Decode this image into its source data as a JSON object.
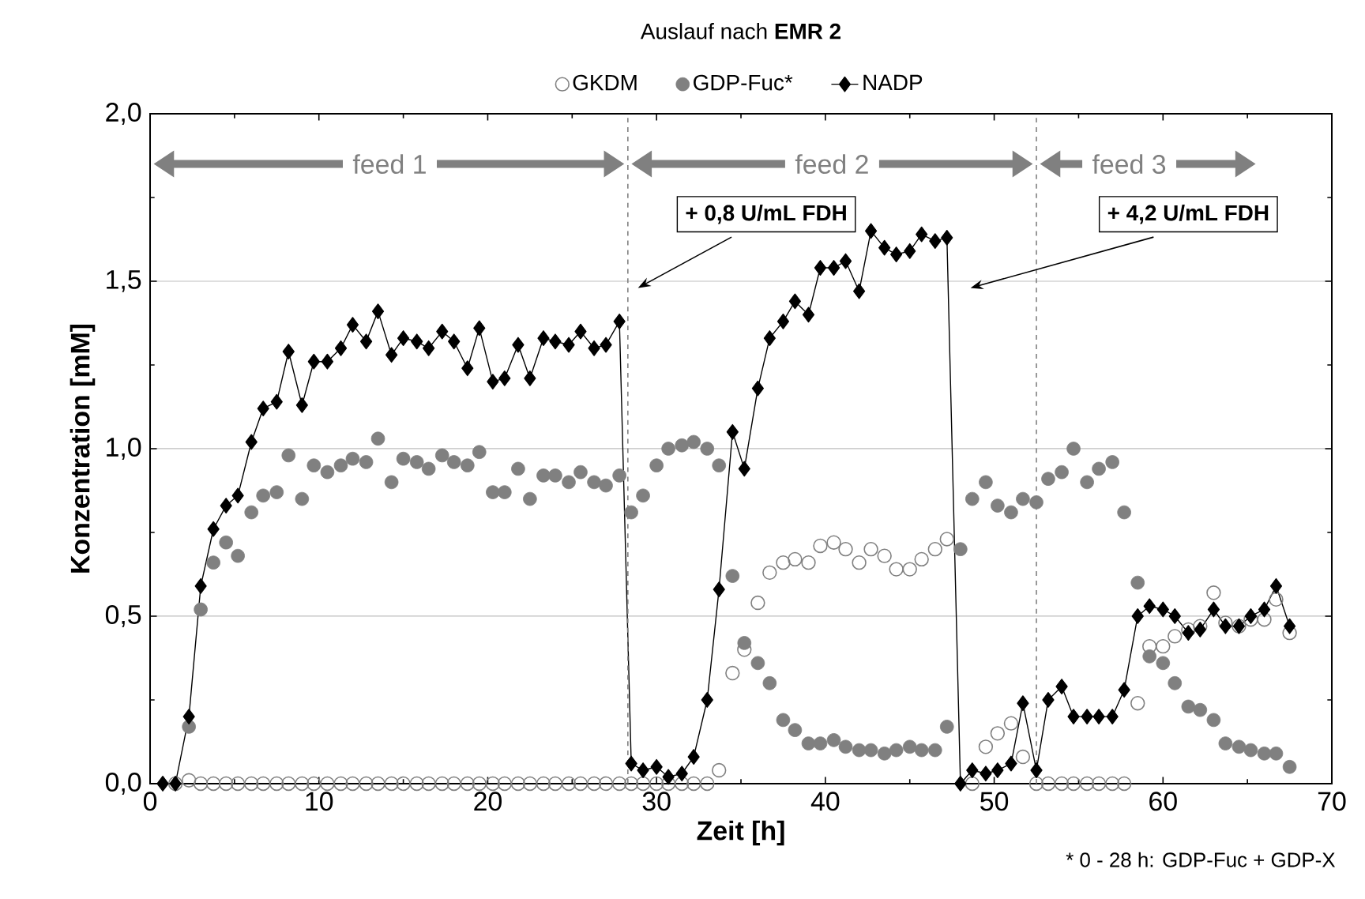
{
  "chart_data": {
    "type": "scatter",
    "title": "Auslauf nach **EMR 2**",
    "xlabel": "Zeit [h]",
    "ylabel": "Konzentration [mM]",
    "xlim": [
      0,
      70
    ],
    "ylim": [
      0,
      2.0
    ],
    "xticks": [
      0,
      10,
      20,
      30,
      40,
      50,
      60,
      70
    ],
    "yticks": [
      {
        "value": 0,
        "label": "0,0"
      },
      {
        "value": 0.5,
        "label": "0,5"
      },
      {
        "value": 1.0,
        "label": "1,0"
      },
      {
        "value": 1.5,
        "label": "1,5"
      },
      {
        "value": 2.0,
        "label": "2,0"
      }
    ],
    "grid": "y",
    "legend": "top",
    "series": [
      {
        "name": "GKDM",
        "marker": "circle-open",
        "color": "#808080",
        "x": [
          1.5,
          2.3,
          3,
          3.75,
          4.5,
          5.2,
          6,
          6.7,
          7.5,
          8.2,
          9,
          9.7,
          10.5,
          11.3,
          12,
          12.8,
          13.5,
          14.3,
          15,
          15.8,
          16.5,
          17.3,
          18,
          18.8,
          19.5,
          20.3,
          21,
          21.8,
          22.5,
          23.3,
          24,
          24.8,
          25.5,
          26.3,
          27,
          27.8,
          28.5,
          29.2,
          30,
          30.7,
          31.5,
          32.2,
          33,
          33.7,
          34.5,
          35.2,
          36,
          36.7,
          37.5,
          38.2,
          39,
          39.7,
          40.5,
          41.2,
          42,
          42.7,
          43.5,
          44.2,
          45,
          45.7,
          46.5,
          47.2,
          48.7,
          49.5,
          50.2,
          51,
          51.7,
          52.5,
          53.2,
          54,
          54.7,
          55.5,
          56.2,
          57,
          57.7,
          58.5,
          59.2,
          60,
          60.7,
          61.5,
          62.2,
          63,
          63.7,
          64.5,
          65.2,
          66,
          66.7,
          67.5
        ],
        "values": [
          0,
          0.01,
          0,
          0,
          0,
          0,
          0,
          0,
          0,
          0,
          0,
          0,
          0,
          0,
          0,
          0,
          0,
          0,
          0,
          0,
          0,
          0,
          0,
          0,
          0,
          0,
          0,
          0,
          0,
          0,
          0,
          0,
          0,
          0,
          0,
          0,
          0,
          0,
          0,
          0,
          0,
          0,
          0,
          0.04,
          0.33,
          0.4,
          0.54,
          0.63,
          0.66,
          0.67,
          0.66,
          0.71,
          0.72,
          0.7,
          0.66,
          0.7,
          0.68,
          0.64,
          0.64,
          0.67,
          0.7,
          0.73,
          0,
          0.11,
          0.15,
          0.18,
          0.08,
          0,
          0,
          0,
          0,
          0,
          0,
          0,
          0,
          0.24,
          0.41,
          0.41,
          0.44,
          0.46,
          0.47,
          0.57,
          0.48,
          0.47,
          0.49,
          0.49,
          0.55,
          0.45
        ]
      },
      {
        "name": "GDP-Fuc*",
        "marker": "circle",
        "color": "#808080",
        "x": [
          2.3,
          3,
          3.75,
          4.5,
          5.2,
          6,
          6.7,
          7.5,
          8.2,
          9,
          9.7,
          10.5,
          11.3,
          12,
          12.8,
          13.5,
          14.3,
          15,
          15.8,
          16.5,
          17.3,
          18,
          18.8,
          19.5,
          20.3,
          21,
          21.8,
          22.5,
          23.3,
          24,
          24.8,
          25.5,
          26.3,
          27,
          27.8,
          28.5,
          29.2,
          30,
          30.7,
          31.5,
          32.2,
          33,
          33.7,
          34.5,
          35.2,
          36,
          36.7,
          37.5,
          38.2,
          39,
          39.7,
          40.5,
          41.2,
          42,
          42.7,
          43.5,
          44.2,
          45,
          45.7,
          46.5,
          47.2,
          48,
          48.7,
          49.5,
          50.2,
          51,
          51.7,
          52.5,
          53.2,
          54,
          54.7,
          55.5,
          56.2,
          57,
          57.7,
          58.5,
          59.2,
          60,
          60.7,
          61.5,
          62.2,
          63,
          63.7,
          64.5,
          65.2,
          66,
          66.7,
          67.5
        ],
        "values": [
          0.17,
          0.52,
          0.66,
          0.72,
          0.68,
          0.81,
          0.86,
          0.87,
          0.98,
          0.85,
          0.95,
          0.93,
          0.95,
          0.97,
          0.96,
          1.03,
          0.9,
          0.97,
          0.96,
          0.94,
          0.98,
          0.96,
          0.95,
          0.99,
          0.87,
          0.87,
          0.94,
          0.85,
          0.92,
          0.92,
          0.9,
          0.93,
          0.9,
          0.89,
          0.92,
          0.81,
          0.86,
          0.95,
          1.0,
          1.01,
          1.02,
          1.0,
          0.95,
          0.62,
          0.42,
          0.36,
          0.3,
          0.19,
          0.16,
          0.12,
          0.12,
          0.13,
          0.11,
          0.1,
          0.1,
          0.09,
          0.1,
          0.11,
          0.1,
          0.1,
          0.17,
          0.7,
          0.85,
          0.9,
          0.83,
          0.81,
          0.85,
          0.84,
          0.91,
          0.93,
          1.0,
          0.9,
          0.94,
          0.96,
          0.81,
          0.6,
          0.38,
          0.36,
          0.3,
          0.23,
          0.22,
          0.19,
          0.12,
          0.11,
          0.1,
          0.09,
          0.09,
          0.05
        ]
      },
      {
        "name": "NADP",
        "type": "line",
        "marker": "diamond",
        "line_style": "solid",
        "color": "#000000",
        "x": [
          0.75,
          1.5,
          2.3,
          3,
          3.75,
          4.5,
          5.2,
          6,
          6.7,
          7.5,
          8.2,
          9,
          9.7,
          10.5,
          11.3,
          12,
          12.8,
          13.5,
          14.3,
          15,
          15.8,
          16.5,
          17.3,
          18,
          18.8,
          19.5,
          20.3,
          21,
          21.8,
          22.5,
          23.3,
          24,
          24.8,
          25.5,
          26.3,
          27,
          27.8,
          28.5,
          29.2,
          30,
          30.7,
          31.5,
          32.2,
          33,
          33.7,
          34.5,
          35.2,
          36,
          36.7,
          37.5,
          38.2,
          39,
          39.7,
          40.5,
          41.2,
          42,
          42.7,
          43.5,
          44.2,
          45,
          45.7,
          46.5,
          47.2,
          48,
          48.7,
          49.5,
          50.2,
          51,
          51.7,
          52.5,
          53.2,
          54,
          54.7,
          55.5,
          56.2,
          57,
          57.7,
          58.5,
          59.2,
          60,
          60.7,
          61.5,
          62.2,
          63,
          63.7,
          64.5,
          65.2,
          66,
          66.7,
          67.5
        ],
        "values": [
          0,
          0,
          0.2,
          0.59,
          0.76,
          0.83,
          0.86,
          1.02,
          1.12,
          1.14,
          1.29,
          1.13,
          1.26,
          1.26,
          1.3,
          1.37,
          1.32,
          1.41,
          1.28,
          1.33,
          1.32,
          1.3,
          1.35,
          1.32,
          1.24,
          1.36,
          1.2,
          1.21,
          1.31,
          1.21,
          1.33,
          1.32,
          1.31,
          1.35,
          1.3,
          1.31,
          1.38,
          0.06,
          0.04,
          0.05,
          0.02,
          0.03,
          0.08,
          0.25,
          0.58,
          1.05,
          0.94,
          1.18,
          1.33,
          1.38,
          1.44,
          1.4,
          1.54,
          1.54,
          1.56,
          1.47,
          1.65,
          1.6,
          1.58,
          1.59,
          1.64,
          1.62,
          1.63,
          0,
          0.04,
          0.03,
          0.04,
          0.06,
          0.24,
          0.04,
          0.25,
          0.29,
          0.2,
          0.2,
          0.2,
          0.2,
          0.28,
          0.5,
          0.53,
          0.52,
          0.5,
          0.45,
          0.46,
          0.52,
          0.47,
          0.47,
          0.5,
          0.52,
          0.59,
          0.47
        ]
      }
    ],
    "ref_lines": [
      {
        "axis": "x",
        "value": 28.3,
        "color": "#808080",
        "line_style": "dashed"
      },
      {
        "axis": "x",
        "value": 52.5,
        "color": "#808080",
        "line_style": "dashed"
      }
    ],
    "annotations": [
      "feed 1",
      "feed 2",
      "feed 3",
      "+ 0,8 U/mL FDH",
      "+ 4,2 U/mL FDH",
      "* 0 - 28 h: GDP-Fuc + GDP-X"
    ]
  }
}
